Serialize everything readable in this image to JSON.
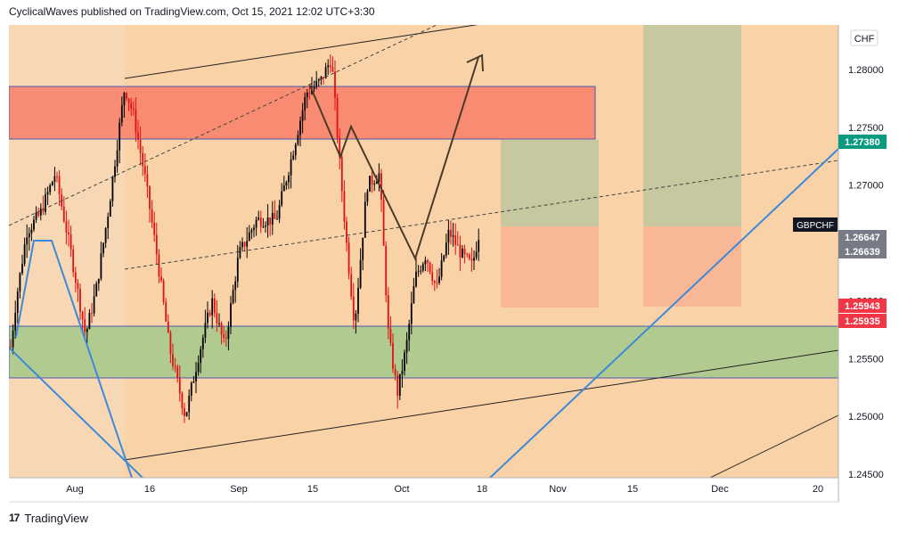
{
  "header": {
    "text": "CyclicalWaves published on TradingView.com, Oct 15, 2021 12:02 UTC+3:30"
  },
  "footer": {
    "logo_glyph": "17",
    "brand": "TradingView"
  },
  "chart_data": {
    "type": "candlestick",
    "symbol": "GBPCHF",
    "currency": "CHF",
    "x_ticks": [
      "Aug",
      "16",
      "Sep",
      "15",
      "Oct",
      "18",
      "Nov",
      "15",
      "Dec",
      "20"
    ],
    "y_ticks": [
      "1.28000",
      "1.27500",
      "1.27000",
      "1.26500",
      "1.26000",
      "1.25500",
      "1.25000",
      "1.24500"
    ],
    "ylim": [
      1.244,
      1.284
    ],
    "price_labels": [
      {
        "value": "1.27380",
        "color": "#089981"
      },
      {
        "value": "1.26647",
        "color": "#787b86"
      },
      {
        "value": "1.26639",
        "color": "#787b86"
      },
      {
        "value": "1.25943",
        "color": "#f23645"
      },
      {
        "value": "1.25935",
        "color": "#f23645"
      }
    ],
    "zones": [
      {
        "name": "resistance",
        "from": 1.2739,
        "to": 1.2785,
        "color": "#f97f6a"
      },
      {
        "name": "support",
        "from": 1.2533,
        "to": 1.258,
        "color": "#a6c98c"
      }
    ],
    "trendlines": "channel lines, dashed mid lines, blue diagonal lines, projected wave path",
    "candle_colors": {
      "up": "#000000",
      "down": "#e01010"
    }
  }
}
